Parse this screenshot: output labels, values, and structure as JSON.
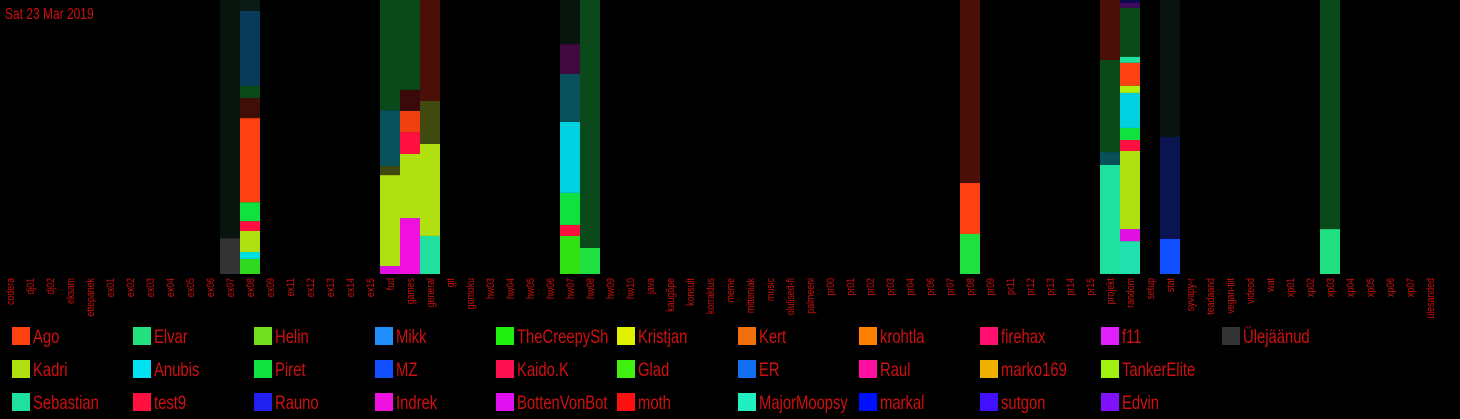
{
  "chart_data": {
    "type": "stacked-bar",
    "title": "Sat 23 Mar 2019",
    "categories": [
      "codera",
      "dj01",
      "dj02",
      "eksam",
      "ettepanek",
      "ex01",
      "ex02",
      "ex03",
      "ex04",
      "ex05",
      "ex06",
      "ex07",
      "ex08",
      "ex09",
      "ex11",
      "ex12",
      "ex13",
      "ex14",
      "ex15",
      "fud",
      "games",
      "general",
      "git",
      "gomoku",
      "hw03",
      "hw04",
      "hw05",
      "hw06",
      "hw07",
      "hw08",
      "hw09",
      "hw10",
      "java",
      "kaugõpe",
      "konsult",
      "korraldus",
      "meme",
      "mitteniak",
      "music",
      "olulised-fi",
      "palmeeni",
      "pr00",
      "pr01",
      "pr02",
      "pr03",
      "pr04",
      "pr06",
      "pr07",
      "pr08",
      "pr09",
      "pr11",
      "pr12",
      "pr13",
      "pr14",
      "pr15",
      "projekt",
      "random",
      "setup",
      "stat",
      "syvapy-r",
      "teadaand",
      "vegan-tiit",
      "videod",
      "wat",
      "xp01",
      "xp02",
      "xp03",
      "xp04",
      "xp05",
      "xp06",
      "xp07",
      "ülesanded"
    ],
    "ylim": [
      0,
      100
    ],
    "stacks": [
      [],
      [],
      [],
      [],
      [],
      [],
      [],
      [],
      [],
      [],
      [],
      [
        {
          "value": 13,
          "color": "#333333"
        },
        {
          "value": 87,
          "color": "#0a140f"
        }
      ],
      [
        {
          "value": 5.5,
          "color": "#30d820"
        },
        {
          "value": 2.5,
          "color": "#00e0e0"
        },
        {
          "value": 7.7,
          "color": "#b0e010"
        },
        {
          "value": 3.6,
          "color": "#ff1040"
        },
        {
          "value": 6.9,
          "color": "#10e040"
        },
        {
          "value": 30.7,
          "color": "#ff4010"
        },
        {
          "value": 7.3,
          "color": "#400e08"
        },
        {
          "value": 4.4,
          "color": "#0a4a1a"
        },
        {
          "value": 27.4,
          "color": "#083a5a"
        },
        {
          "value": 4,
          "color": "#0a1a14"
        }
      ],
      [],
      [],
      [],
      [],
      [],
      [],
      [
        {
          "value": 2.9,
          "color": "#e010e0"
        },
        {
          "value": 33.2,
          "color": "#b0e010"
        },
        {
          "value": 3.3,
          "color": "#404a10"
        },
        {
          "value": 20.4,
          "color": "#08505a"
        },
        {
          "value": 40.2,
          "color": "#0a4a1a"
        }
      ],
      [
        {
          "value": 20.4,
          "color": "#f010e0"
        },
        {
          "value": 23.4,
          "color": "#b0e010"
        },
        {
          "value": 8,
          "color": "#ff1040"
        },
        {
          "value": 7.7,
          "color": "#f04010"
        },
        {
          "value": 7.7,
          "color": "#3a0a0a"
        },
        {
          "value": 32.8,
          "color": "#0a4a1a"
        }
      ],
      [
        {
          "value": 13.9,
          "color": "#20e0a0"
        },
        {
          "value": 33.6,
          "color": "#b0e010"
        },
        {
          "value": 15.7,
          "color": "#404a10"
        },
        {
          "value": 36.8,
          "color": "#4a1008"
        }
      ],
      [],
      [],
      [],
      [],
      [],
      [],
      [
        {
          "value": 13.9,
          "color": "#30e010"
        },
        {
          "value": 4,
          "color": "#ff1040"
        },
        {
          "value": 11.7,
          "color": "#10e040"
        },
        {
          "value": 25.9,
          "color": "#00d0e0"
        },
        {
          "value": 17.5,
          "color": "#08505a"
        },
        {
          "value": 10.9,
          "color": "#400a40"
        },
        {
          "value": 16.1,
          "color": "#0a140f"
        }
      ],
      [
        {
          "value": 9.5,
          "color": "#20e040"
        },
        {
          "value": 90.5,
          "color": "#0a4a1a"
        }
      ],
      [],
      [],
      [],
      [],
      [],
      [],
      [],
      [],
      [],
      [],
      [],
      [],
      [],
      [],
      [],
      [],
      [],
      [],
      [
        {
          "value": 14.6,
          "color": "#20e040"
        },
        {
          "value": 18.6,
          "color": "#ff4010"
        },
        {
          "value": 66.8,
          "color": "#4a1008"
        }
      ],
      [],
      [],
      [],
      [],
      [],
      [],
      [
        {
          "value": 39.8,
          "color": "#20e0a0"
        },
        {
          "value": 4.7,
          "color": "#08505a"
        },
        {
          "value": 33.6,
          "color": "#0a4a1a"
        },
        {
          "value": 21.9,
          "color": "#4a1008"
        }
      ],
      [
        {
          "value": 12,
          "color": "#20e0b0"
        },
        {
          "value": 4.4,
          "color": "#e010e0"
        },
        {
          "value": 28.5,
          "color": "#b0e010"
        },
        {
          "value": 4,
          "color": "#ff1040"
        },
        {
          "value": 4.4,
          "color": "#10e040"
        },
        {
          "value": 12.8,
          "color": "#00d0e0"
        },
        {
          "value": 2.6,
          "color": "#b0f010"
        },
        {
          "value": 8.4,
          "color": "#ff4010"
        },
        {
          "value": 2.2,
          "color": "#20e0a0"
        },
        {
          "value": 17.9,
          "color": "#0a4a1a"
        },
        {
          "value": 1.8,
          "color": "#400a60"
        },
        {
          "value": 1,
          "color": "#0a0a50"
        }
      ],
      [],
      [
        {
          "value": 12.8,
          "color": "#1050ff"
        },
        {
          "value": 37.2,
          "color": "#0a1450"
        },
        {
          "value": 50,
          "color": "#0a140f"
        }
      ],
      [],
      [],
      [],
      [],
      [],
      [],
      [],
      [
        {
          "value": 16.4,
          "color": "#20e080"
        },
        {
          "value": 83.6,
          "color": "#0a4a1a"
        }
      ],
      [],
      [],
      [],
      [],
      []
    ],
    "legend": [
      {
        "name": "Ago",
        "color": "#ff4010"
      },
      {
        "name": "Kadri",
        "color": "#b0e010"
      },
      {
        "name": "Sebastian",
        "color": "#20e0a0"
      },
      {
        "name": "Elvar",
        "color": "#20e080"
      },
      {
        "name": "Anubis",
        "color": "#00e0f0"
      },
      {
        "name": "test9",
        "color": "#ff1040"
      },
      {
        "name": "Helin",
        "color": "#70e020"
      },
      {
        "name": "Piret",
        "color": "#10e040"
      },
      {
        "name": "Rauno",
        "color": "#2020f0"
      },
      {
        "name": "Mikk",
        "color": "#2090ff"
      },
      {
        "name": "MZ",
        "color": "#1050ff"
      },
      {
        "name": "Indrek",
        "color": "#f010e0"
      },
      {
        "name": "TheCreepySh",
        "color": "#20f010"
      },
      {
        "name": "Kaido.K",
        "color": "#ff1050"
      },
      {
        "name": "BottenVonBot",
        "color": "#e010f0"
      },
      {
        "name": "Kristjan",
        "color": "#e0f000"
      },
      {
        "name": "Glad",
        "color": "#40f010"
      },
      {
        "name": "moth",
        "color": "#ff1010"
      },
      {
        "name": "Kert",
        "color": "#f07010"
      },
      {
        "name": "ER",
        "color": "#1070f0"
      },
      {
        "name": "MajorMoopsy",
        "color": "#20f0c0"
      },
      {
        "name": "krohtla",
        "color": "#ff8000"
      },
      {
        "name": "Raul",
        "color": "#ff10a0"
      },
      {
        "name": "markal",
        "color": "#0010ff"
      },
      {
        "name": "firehax",
        "color": "#ff1070"
      },
      {
        "name": "marko169",
        "color": "#f0b000"
      },
      {
        "name": "sutgon",
        "color": "#4010ff"
      },
      {
        "name": "f11",
        "color": "#e020ff"
      },
      {
        "name": "TankerElite",
        "color": "#a0f010"
      },
      {
        "name": "Edvin",
        "color": "#8010ff"
      },
      {
        "name": "Ülejäänud",
        "color": "#333333"
      }
    ]
  }
}
